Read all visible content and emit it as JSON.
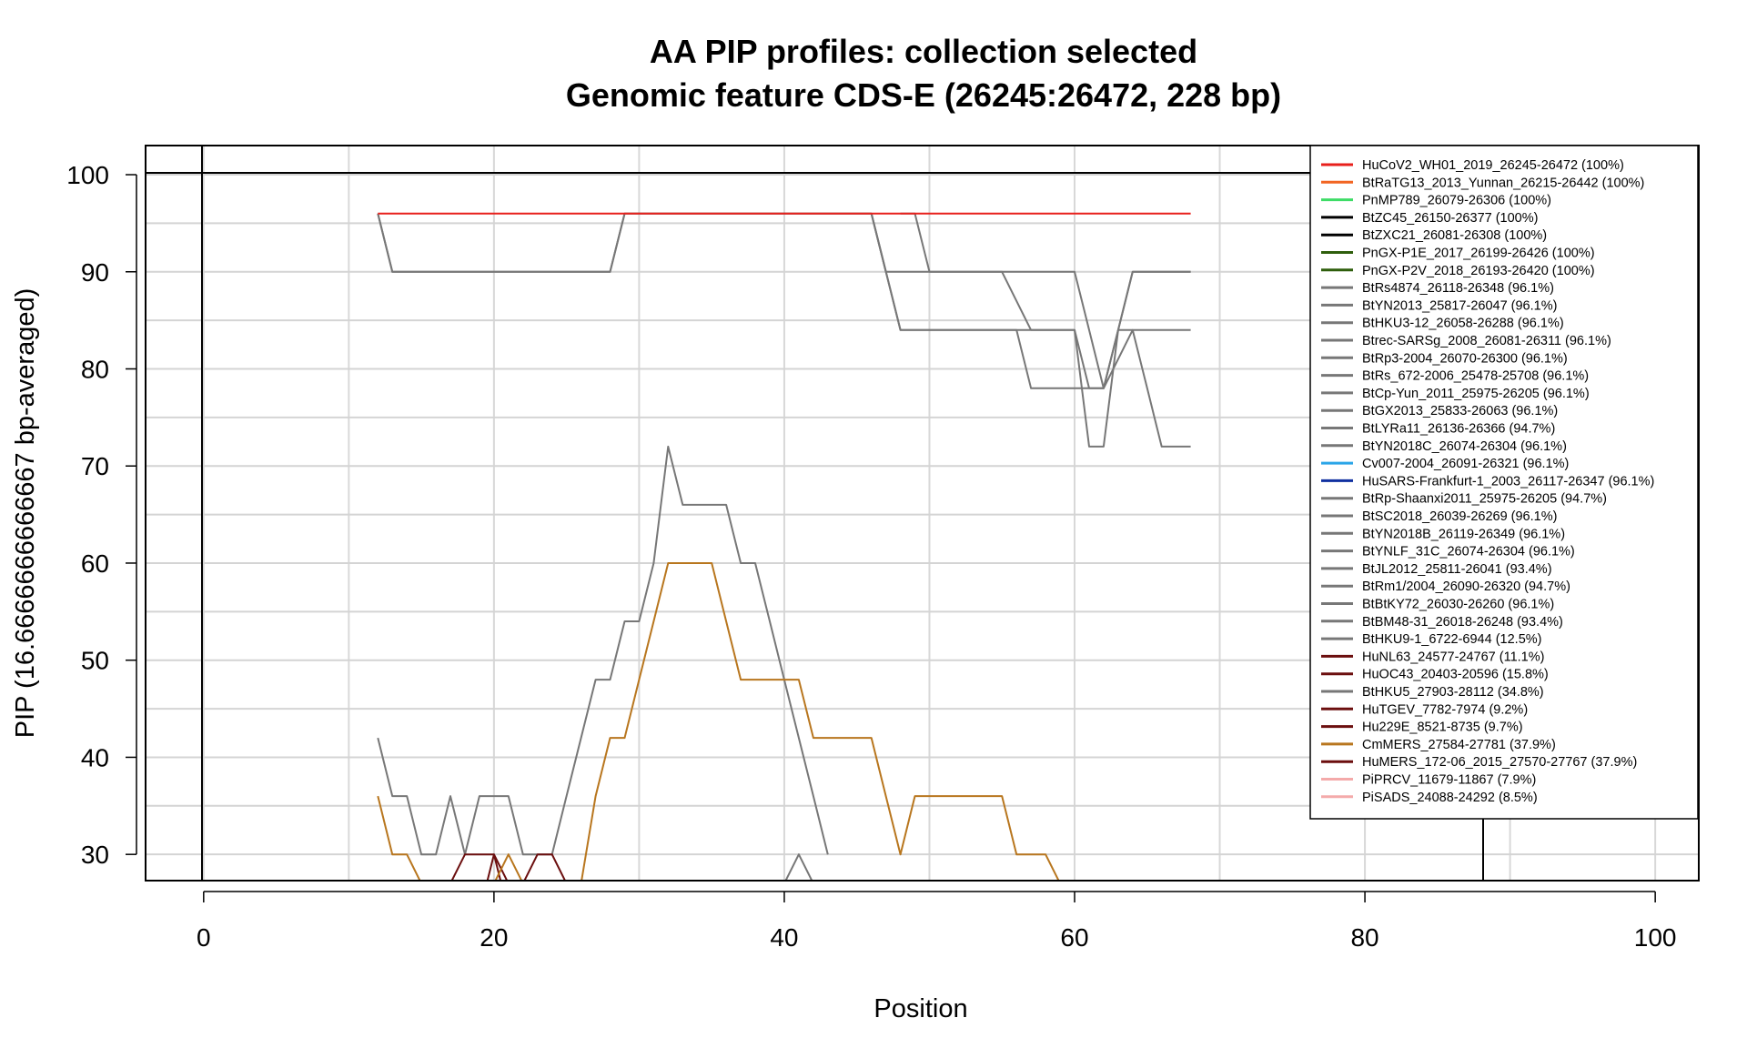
{
  "chart_data": {
    "type": "line",
    "title": "AA PIP profiles: collection selected",
    "subtitle": "Genomic feature CDS-E (26245:26472, 228 bp)",
    "xlabel": "Position",
    "ylabel": "PIP (16.6666666666667 bp-averaged)",
    "xlim": [
      -4,
      103
    ],
    "ylim": [
      27.3,
      103.0
    ],
    "x_ticks": [
      "0",
      "20",
      "40",
      "60",
      "80",
      "100"
    ],
    "y_ticks": [
      "30",
      "40",
      "50",
      "60",
      "70",
      "80",
      "90",
      "100"
    ],
    "grid": true,
    "legend_position": "top-right",
    "legend": [
      {
        "label": "HuCoV2_WH01_2019_26245-26472 (100%)",
        "color": "#e8201c"
      },
      {
        "label": "BtRaTG13_2013_Yunnan_26215-26442 (100%)",
        "color": "#f26522"
      },
      {
        "label": "PnMP789_26079-26306 (100%)",
        "color": "#3ddc66"
      },
      {
        "label": "BtZC45_26150-26377 (100%)",
        "color": "#000000"
      },
      {
        "label": "BtZXC21_26081-26308 (100%)",
        "color": "#000000"
      },
      {
        "label": "PnGX-P1E_2017_26199-26426 (100%)",
        "color": "#2e5e0c"
      },
      {
        "label": "PnGX-P2V_2018_26193-26420 (100%)",
        "color": "#2e5e0c"
      },
      {
        "label": "BtRs4874_26118-26348 (96.1%)",
        "color": "#777777"
      },
      {
        "label": "BtYN2013_25817-26047 (96.1%)",
        "color": "#777777"
      },
      {
        "label": "BtHKU3-12_26058-26288 (96.1%)",
        "color": "#777777"
      },
      {
        "label": "Btrec-SARSg_2008_26081-26311 (96.1%)",
        "color": "#777777"
      },
      {
        "label": "BtRp3-2004_26070-26300 (96.1%)",
        "color": "#777777"
      },
      {
        "label": "BtRs_672-2006_25478-25708 (96.1%)",
        "color": "#777777"
      },
      {
        "label": "BtCp-Yun_2011_25975-26205 (96.1%)",
        "color": "#777777"
      },
      {
        "label": "BtGX2013_25833-26063 (96.1%)",
        "color": "#777777"
      },
      {
        "label": "BtLYRa11_26136-26366 (94.7%)",
        "color": "#777777"
      },
      {
        "label": "BtYN2018C_26074-26304 (96.1%)",
        "color": "#777777"
      },
      {
        "label": "Cv007-2004_26091-26321 (96.1%)",
        "color": "#2aa5e8"
      },
      {
        "label": "HuSARS-Frankfurt-1_2003_26117-26347 (96.1%)",
        "color": "#1030a0"
      },
      {
        "label": "BtRp-Shaanxi2011_25975-26205 (94.7%)",
        "color": "#777777"
      },
      {
        "label": "BtSC2018_26039-26269 (96.1%)",
        "color": "#777777"
      },
      {
        "label": "BtYN2018B_26119-26349 (96.1%)",
        "color": "#777777"
      },
      {
        "label": "BtYNLF_31C_26074-26304 (96.1%)",
        "color": "#777777"
      },
      {
        "label": "BtJL2012_25811-26041 (93.4%)",
        "color": "#777777"
      },
      {
        "label": "BtRm1/2004_26090-26320 (94.7%)",
        "color": "#777777"
      },
      {
        "label": "BtBtKY72_26030-26260 (96.1%)",
        "color": "#777777"
      },
      {
        "label": "BtBM48-31_26018-26248 (93.4%)",
        "color": "#777777"
      },
      {
        "label": "BtHKU9-1_6722-6944 (12.5%)",
        "color": "#777777"
      },
      {
        "label": "HuNL63_24577-24767 (11.1%)",
        "color": "#6b0e0e"
      },
      {
        "label": "HuOC43_20403-20596 (15.8%)",
        "color": "#6b0e0e"
      },
      {
        "label": "BtHKU5_27903-28112 (34.8%)",
        "color": "#777777"
      },
      {
        "label": "HuTGEV_7782-7974 (9.2%)",
        "color": "#6b0e0e"
      },
      {
        "label": "Hu229E_8521-8735 (9.7%)",
        "color": "#6b0e0e"
      },
      {
        "label": "CmMERS_27584-27781 (37.9%)",
        "color": "#b8761e"
      },
      {
        "label": "HuMERS_172-06_2015_27570-27767 (37.9%)",
        "color": "#6b0e0e"
      },
      {
        "label": "PiPRCV_11679-11867 (7.9%)",
        "color": "#f4aaaa"
      },
      {
        "label": "PiSADS_24088-24292 (8.5%)",
        "color": "#f4aaaa"
      }
    ],
    "series": [
      {
        "color": "#777777",
        "x": [
          12,
          13,
          14,
          15,
          16,
          17,
          18,
          19,
          20,
          21,
          22,
          23,
          24,
          25,
          26,
          27,
          28,
          29,
          30,
          31,
          32,
          33,
          34,
          35,
          36,
          37,
          38,
          39,
          40,
          41,
          42,
          43
        ],
        "y": [
          42,
          36,
          36,
          30,
          30,
          36,
          30,
          36,
          36,
          36,
          30,
          30,
          30,
          36,
          42,
          48,
          48,
          54,
          54,
          60,
          72,
          66,
          66,
          66,
          66,
          60,
          60,
          54,
          48,
          42,
          36,
          30
        ]
      },
      {
        "color": "#777777",
        "x": [
          12,
          13,
          28,
          29,
          46,
          48,
          55,
          56,
          58,
          59,
          60,
          61,
          62,
          63,
          64,
          65,
          66,
          67,
          68
        ],
        "y": [
          96,
          90,
          90,
          96,
          96,
          84,
          84,
          84,
          84,
          84,
          84,
          72,
          72,
          84,
          84,
          78,
          72,
          72,
          72
        ]
      },
      {
        "color": "#777777",
        "x": [
          12,
          13,
          28,
          29,
          46,
          47,
          53,
          55,
          57,
          58,
          60,
          61,
          62,
          64,
          66,
          68
        ],
        "y": [
          96,
          90,
          90,
          96,
          96,
          90,
          90,
          90,
          84,
          84,
          84,
          78,
          78,
          84,
          84,
          84
        ]
      },
      {
        "color": "#777777",
        "x": [
          46,
          48,
          55,
          56,
          57,
          58,
          59,
          60,
          61,
          62,
          63,
          64,
          68
        ],
        "y": [
          96,
          84,
          84,
          84,
          78,
          78,
          78,
          78,
          78,
          78,
          84,
          90,
          90
        ]
      },
      {
        "color": "#777777",
        "x": [
          48,
          49,
          50,
          60,
          61,
          62,
          63,
          64,
          65,
          68
        ],
        "y": [
          96,
          96,
          90,
          90,
          84,
          78,
          84,
          90,
          90,
          90
        ]
      },
      {
        "color": "#777777",
        "x": [
          40,
          41,
          42
        ],
        "y": [
          27,
          30,
          27
        ]
      },
      {
        "color": "#6b0e0e",
        "x": [
          17,
          18,
          20,
          20.5,
          21
        ],
        "y": [
          27,
          30,
          30,
          27,
          27
        ]
      },
      {
        "color": "#6b0e0e",
        "x": [
          19.5,
          20,
          21
        ],
        "y": [
          27,
          30,
          27
        ]
      },
      {
        "color": "#6b0e0e",
        "x": [
          22,
          23,
          24,
          25
        ],
        "y": [
          27,
          30,
          30,
          27
        ]
      },
      {
        "color": "#b8761e",
        "x": [
          12,
          13,
          14,
          15,
          20,
          21,
          22,
          26,
          27,
          28,
          29,
          30,
          31,
          32,
          33,
          34,
          35,
          36,
          37,
          38,
          39,
          40,
          41,
          42,
          43,
          44,
          45,
          46,
          47,
          48,
          49,
          50,
          51,
          52,
          53,
          54,
          55,
          56,
          57,
          58,
          59
        ],
        "y": [
          36,
          30,
          30,
          27,
          27,
          30,
          27,
          27,
          36,
          42,
          42,
          48,
          54,
          60,
          60,
          60,
          60,
          54,
          48,
          48,
          48,
          48,
          48,
          42,
          42,
          42,
          42,
          42,
          36,
          30,
          36,
          36,
          36,
          36,
          36,
          36,
          36,
          30,
          30,
          30,
          27
        ]
      },
      {
        "color": "#e8201c",
        "x": [
          12,
          68
        ],
        "y": [
          96,
          96
        ]
      }
    ]
  }
}
